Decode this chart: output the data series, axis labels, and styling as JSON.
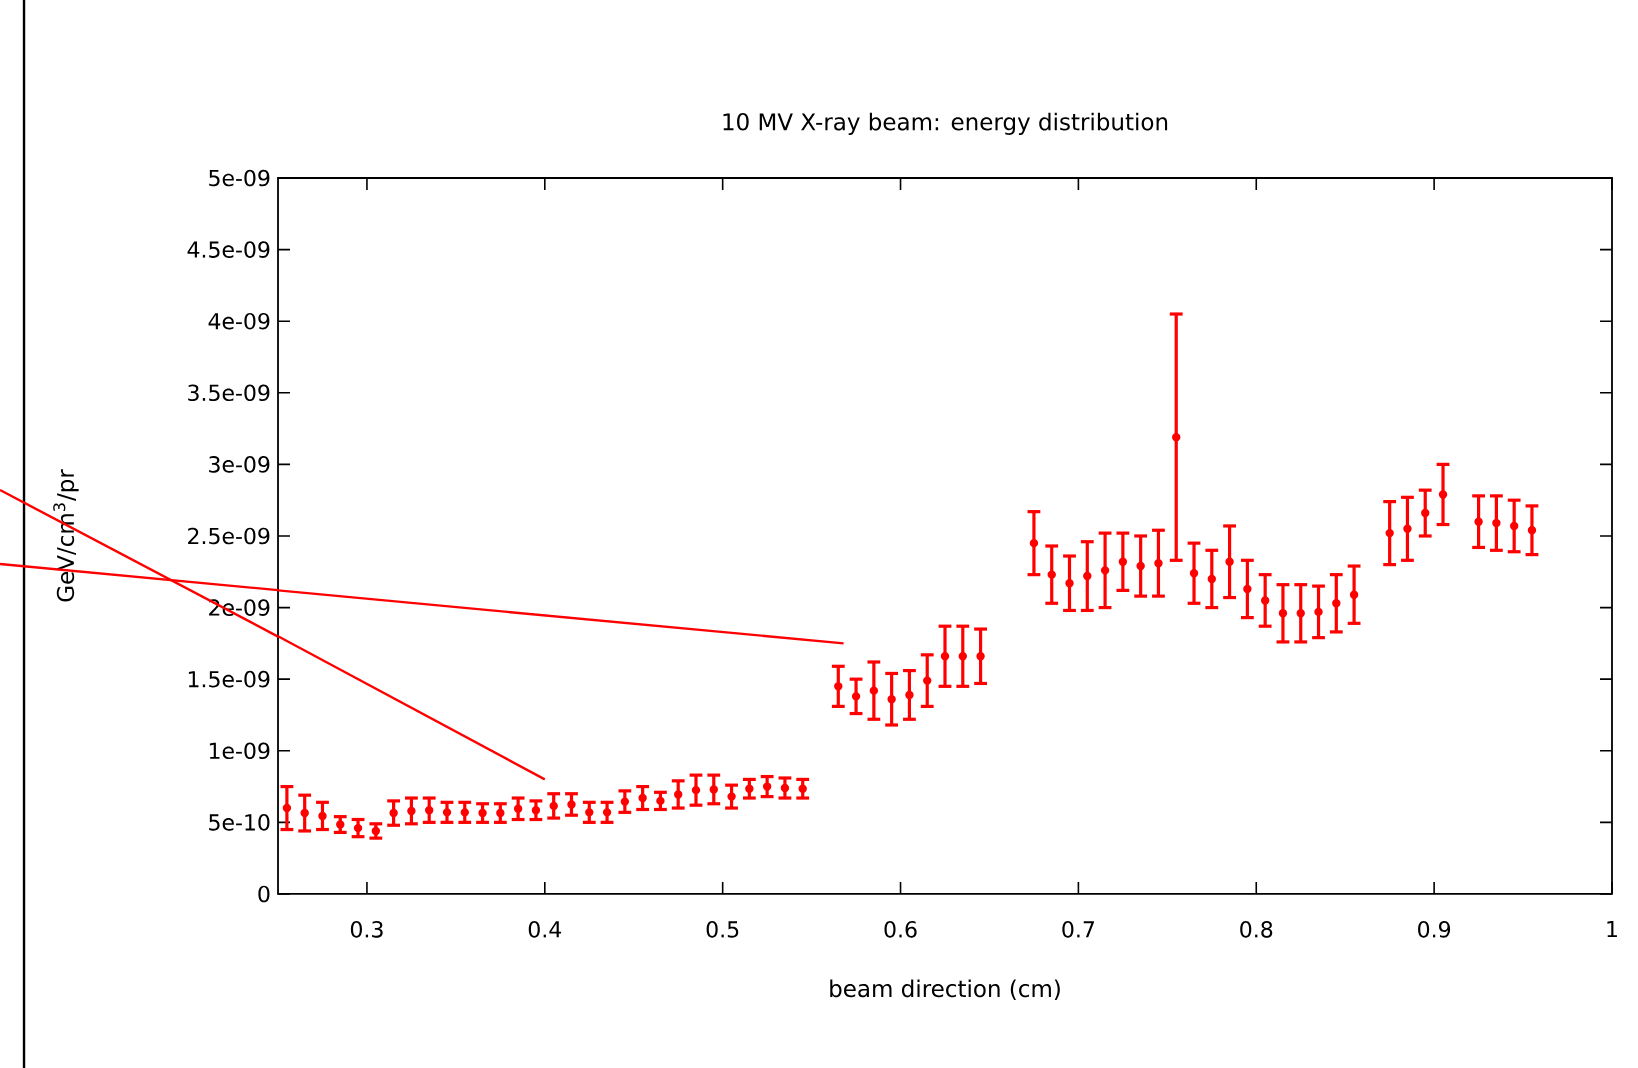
{
  "chart_data": {
    "type": "scatter",
    "title": "10 MV X-ray beam: energy distribution",
    "xlabel": "beam direction (cm)",
    "ylabel": "GeV/cm$^{3}$/pr",
    "series": [
      {
        "color": "#ff0000",
        "marker": "circle",
        "x": [
          0.255,
          0.265,
          0.275,
          0.285,
          0.295,
          0.305,
          0.315,
          0.325,
          0.335,
          0.345,
          0.355,
          0.365,
          0.375,
          0.385,
          0.395,
          0.405,
          0.415,
          0.425,
          0.435,
          0.445,
          0.455,
          0.465,
          0.475,
          0.485,
          0.495,
          0.505,
          0.515,
          0.525,
          0.535,
          0.545,
          0.565,
          0.575,
          0.585,
          0.595,
          0.605,
          0.615,
          0.625,
          0.635,
          0.645,
          0.675,
          0.685,
          0.695,
          0.705,
          0.715,
          0.725,
          0.735,
          0.745,
          0.755,
          0.765,
          0.775,
          0.785,
          0.795,
          0.805,
          0.815,
          0.825,
          0.835,
          0.845,
          0.855,
          0.875,
          0.885,
          0.895,
          0.905,
          0.925,
          0.935,
          0.945,
          0.955
        ],
        "values": [
          6e-10,
          5.65e-10,
          5.45e-10,
          4.85e-10,
          4.6e-10,
          4.4e-10,
          5.65e-10,
          5.8e-10,
          5.85e-10,
          5.7e-10,
          5.7e-10,
          5.65e-10,
          5.65e-10,
          5.95e-10,
          5.85e-10,
          6.15e-10,
          6.25e-10,
          5.7e-10,
          5.7e-10,
          6.45e-10,
          6.7e-10,
          6.5e-10,
          6.95e-10,
          7.25e-10,
          7.3e-10,
          6.8e-10,
          7.35e-10,
          7.5e-10,
          7.4e-10,
          7.35e-10,
          1.45e-09,
          1.38e-09,
          1.42e-09,
          1.36e-09,
          1.39e-09,
          1.49e-09,
          1.66e-09,
          1.66e-09,
          1.66e-09,
          2.45e-09,
          2.23e-09,
          2.17e-09,
          2.22e-09,
          2.26e-09,
          2.32e-09,
          2.29e-09,
          2.31e-09,
          3.19e-09,
          2.24e-09,
          2.2e-09,
          2.32e-09,
          2.13e-09,
          2.05e-09,
          1.96e-09,
          1.96e-09,
          1.97e-09,
          2.03e-09,
          2.09e-09,
          2.52e-09,
          2.55e-09,
          2.66e-09,
          2.79e-09,
          2.6e-09,
          2.59e-09,
          2.57e-09,
          2.54e-09
        ],
        "errors": [
          1.5e-10,
          1.25e-10,
          9.5e-11,
          5.5e-11,
          6e-11,
          5e-11,
          8.5e-11,
          9e-11,
          8.5e-11,
          7e-11,
          7e-11,
          6.5e-11,
          6.5e-11,
          7.5e-11,
          6.5e-11,
          8.5e-11,
          7.5e-11,
          7e-11,
          7e-11,
          7.5e-11,
          8e-11,
          6e-11,
          9.5e-11,
          1.05e-10,
          1e-10,
          8e-11,
          6.5e-11,
          7e-11,
          7e-11,
          6.5e-11,
          1.4e-10,
          1.2e-10,
          2e-10,
          1.8e-10,
          1.7e-10,
          1.8e-10,
          2.1e-10,
          2.1e-10,
          1.9e-10,
          2.2e-10,
          2e-10,
          1.9e-10,
          2.4e-10,
          2.6e-10,
          2e-10,
          2.1e-10,
          2.3e-10,
          8.6e-10,
          2.1e-10,
          2e-10,
          2.5e-10,
          2e-10,
          1.8e-10,
          2e-10,
          2e-10,
          1.8e-10,
          2e-10,
          2e-10,
          2.2e-10,
          2.2e-10,
          1.6e-10,
          2.1e-10,
          1.8e-10,
          1.9e-10,
          1.8e-10,
          1.7e-10
        ]
      },
      {
        "type": "line",
        "marker": "none",
        "color": "#ff0000",
        "x": [
          0.25,
          0.4
        ],
        "values": [
          1.8e-09,
          8e-10
        ]
      },
      {
        "type": "line",
        "marker": "none",
        "color": "#ff0000",
        "x": [
          0.25,
          0.568
        ],
        "values": [
          2.12e-09,
          1.75e-09
        ]
      }
    ],
    "xlim": [
      0.25,
      1
    ],
    "xticks": [
      0.3,
      0.4,
      0.5,
      0.6,
      0.7,
      0.8,
      0.9,
      1
    ],
    "ylim": [
      0,
      5e-09
    ],
    "yticks": [
      0,
      {
        "value": 5e-10,
        "label": "5e-10"
      },
      {
        "value": 1e-09,
        "label": "1e-09"
      },
      {
        "value": 1.5e-09,
        "label": "1.5e-09"
      },
      {
        "value": 2e-09,
        "label": "2e-09"
      },
      {
        "value": 2.5e-09,
        "label": "2.5e-09"
      },
      {
        "value": 3e-09,
        "label": "3e-09"
      },
      {
        "value": 3.5e-09,
        "label": "3.5e-09"
      },
      {
        "value": 4e-09,
        "label": "4e-09"
      },
      {
        "value": 4.5e-09,
        "label": "4.5e-09"
      },
      {
        "value": 5e-09,
        "label": "5e-09"
      }
    ]
  }
}
